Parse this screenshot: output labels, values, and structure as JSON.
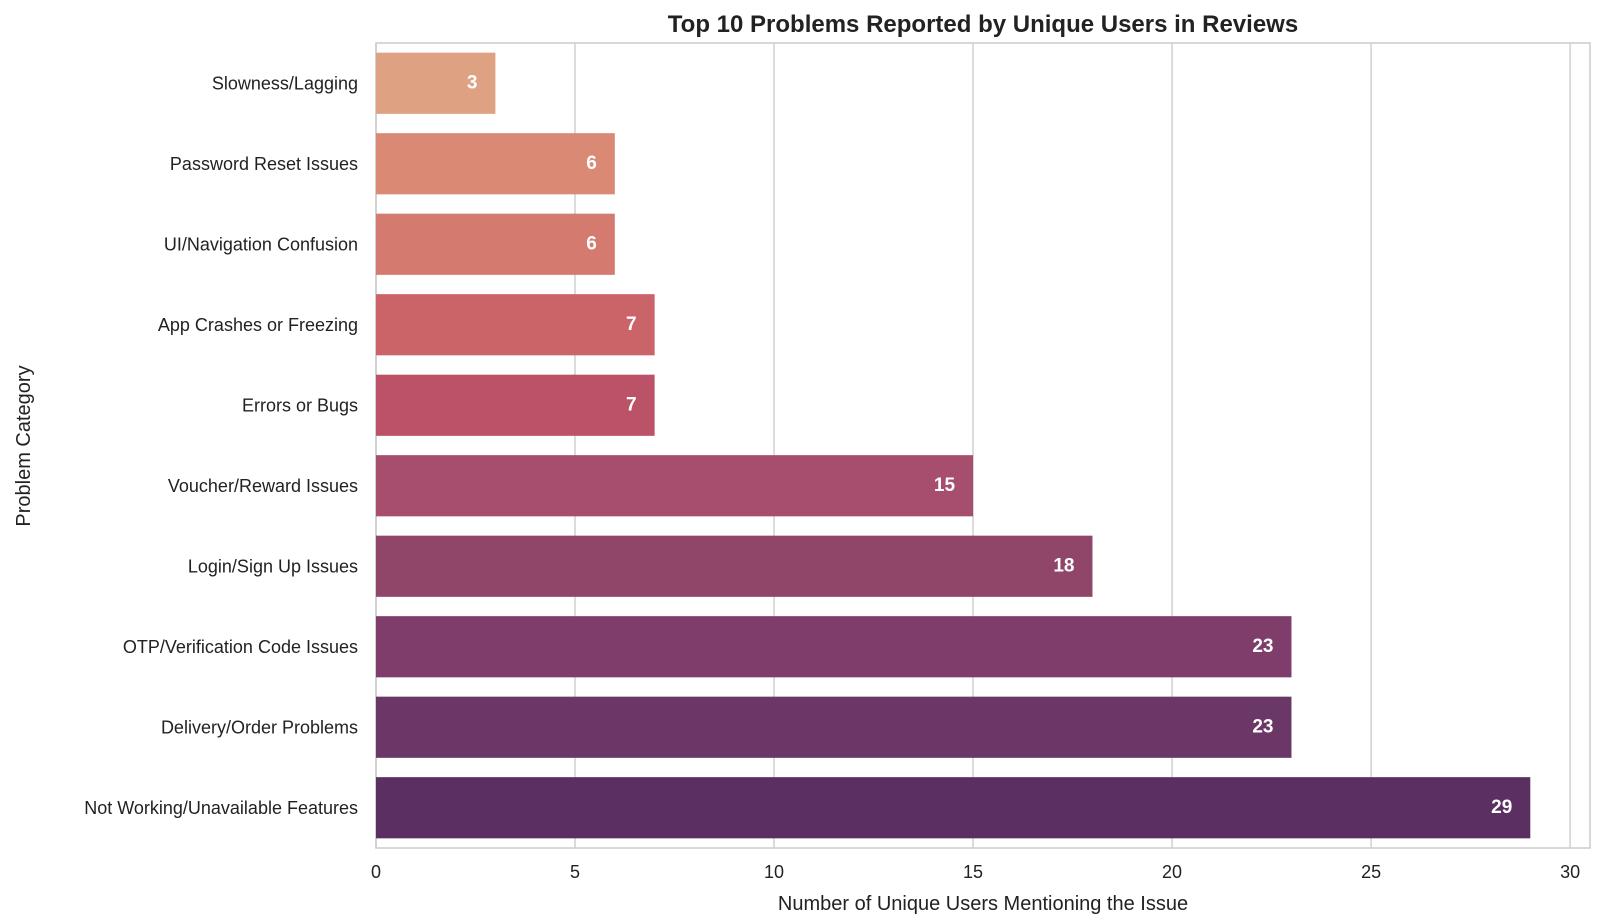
{
  "chart_data": {
    "type": "bar",
    "orientation": "horizontal",
    "title": "Top 10 Problems Reported by Unique Users in Reviews",
    "xlabel": "Number of Unique Users Mentioning the Issue",
    "ylabel": "Problem Category",
    "categories": [
      "Slowness/Lagging",
      "Password Reset Issues",
      "UI/Navigation Confusion",
      "App Crashes or Freezing",
      "Errors or Bugs",
      "Voucher/Reward Issues",
      "Login/Sign Up Issues",
      "OTP/Verification Code Issues",
      "Delivery/Order Problems",
      "Not Working/Unavailable Features"
    ],
    "values": [
      3,
      6,
      6,
      7,
      7,
      15,
      18,
      23,
      23,
      29
    ],
    "colors": [
      "#dea283",
      "#da8a74",
      "#d47a6e",
      "#cb6468",
      "#bb5267",
      "#a74d6e",
      "#904669",
      "#7f3d6b",
      "#6a3766",
      "#5c2f63"
    ],
    "xlim": [
      0,
      30.5
    ],
    "xticks": [
      0,
      5,
      10,
      15,
      20,
      25,
      30
    ],
    "grid": "vertical",
    "data_labels": true
  }
}
